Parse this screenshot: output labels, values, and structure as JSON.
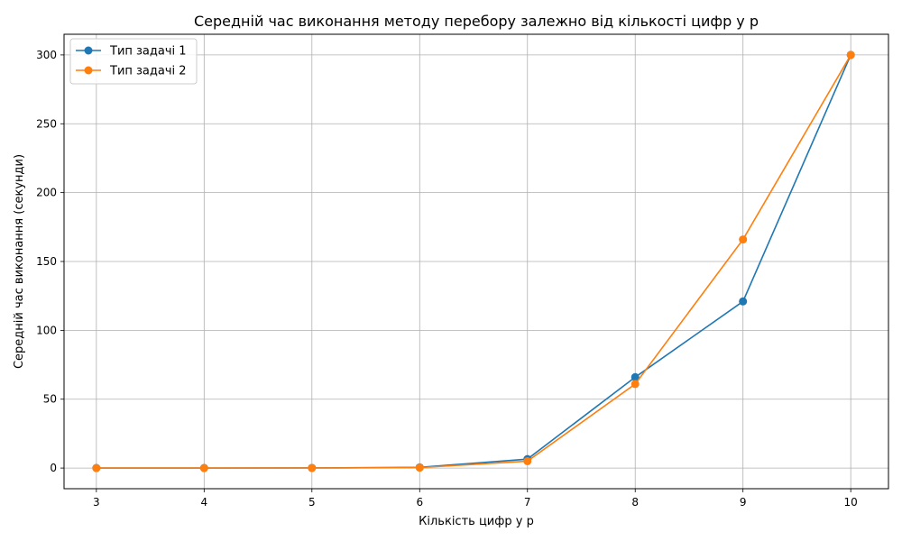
{
  "chart_data": {
    "type": "line",
    "title": "Середній час виконання методу перебору залежно від кількості цифр у p",
    "xlabel": "Кількість цифр у p",
    "ylabel": "Середній час виконання (секунди)",
    "x": [
      3,
      4,
      5,
      6,
      7,
      8,
      9,
      10
    ],
    "xlim": [
      2.7,
      10.35
    ],
    "ylim": [
      -15,
      315
    ],
    "xticks": [
      3,
      4,
      5,
      6,
      7,
      8,
      9,
      10
    ],
    "yticks": [
      0,
      50,
      100,
      150,
      200,
      250,
      300
    ],
    "grid": true,
    "legend_position": "top-left",
    "series": [
      {
        "name": "Тип задачі 1",
        "color": "#1f77b4",
        "marker": "circle",
        "values": [
          0.02,
          0.03,
          0.08,
          0.5,
          6.5,
          66,
          121,
          300
        ]
      },
      {
        "name": "Тип задачі 2",
        "color": "#ff7f0e",
        "marker": "circle",
        "values": [
          0.01,
          0.02,
          0.05,
          0.3,
          5,
          61,
          166,
          300
        ]
      }
    ]
  }
}
